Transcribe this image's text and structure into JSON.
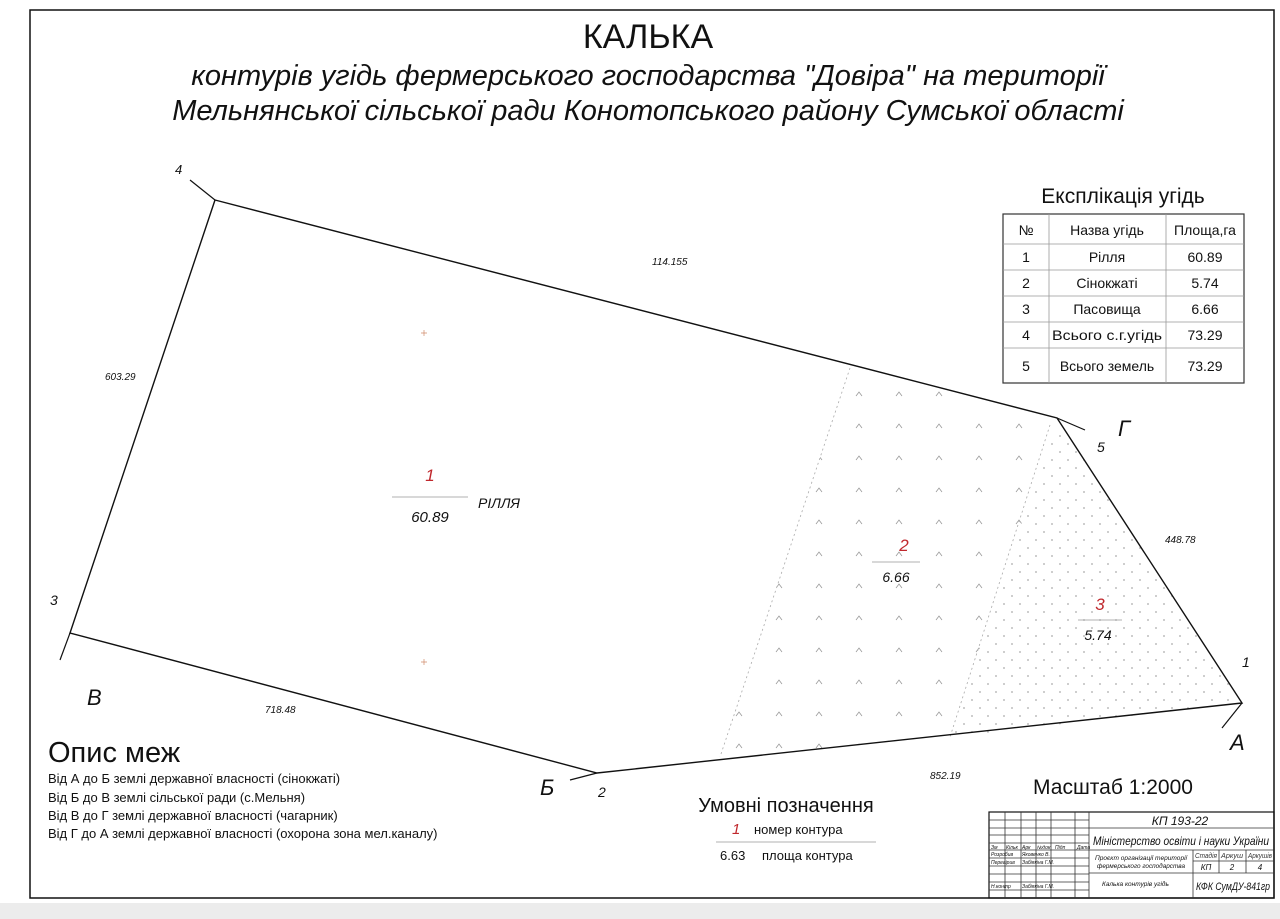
{
  "title": {
    "main": "КАЛЬКА",
    "line1": "контурів угідь фермерського господарства \"Довіра\" на території",
    "line2": "Мельнянської сільської ради Конотопського району Сумської  області"
  },
  "points": {
    "p1": "1",
    "p2": "2",
    "p3": "3",
    "p4": "4",
    "p5": "5",
    "A": "А",
    "B": "Б",
    "V": "В",
    "G": "Г"
  },
  "dimensions": {
    "top": "114.155",
    "left": "603.29",
    "right": "448.78",
    "bottom_left": "718.48",
    "bottom_right": "852.19"
  },
  "contours": [
    {
      "number": "1",
      "area": "60.89",
      "name": "РІЛЛЯ"
    },
    {
      "number": "2",
      "area": "6.66"
    },
    {
      "number": "3",
      "area": "5.74"
    }
  ],
  "explication": {
    "title": "Експлікація угідь",
    "headers": [
      "№",
      "Назва угідь",
      "Площа,га"
    ],
    "rows": [
      [
        "1",
        "Рілля",
        "60.89"
      ],
      [
        "2",
        "Сінокжаті",
        "5.74"
      ],
      [
        "3",
        "Пасовища",
        "6.66"
      ],
      [
        "4",
        "Всього с.г.угідь",
        "73.29"
      ],
      [
        "5",
        "Всього земель",
        "73.29"
      ]
    ]
  },
  "boundaries": {
    "title": "Опис меж",
    "lines": [
      "Від А до Б землі державної власності (сінокжаті)",
      "Від Б до В землі сільської ради (с.Мельня)",
      "Від В до Г землі державної власності (чагарник)",
      "Від Г до А землі державної власності (охорона зона мел.каналу)"
    ]
  },
  "legend": {
    "title": "Умовні позначення",
    "number_sample": "1",
    "number_label": "номер контура",
    "area_sample": "6.63",
    "area_label": "площа контура"
  },
  "scale": "Масштаб 1:2000",
  "title_block": {
    "code": "КП 193-22",
    "ministry": "Міністерство освіти і науки України",
    "project": "Проєкт організації території",
    "project2": "фермерського господарства",
    "sheet_name": "Калька контурів угідь",
    "org": "КФК СумДУ-841гр",
    "col_headers": [
      "Зм",
      "Кільк",
      "Арк",
      "№док",
      "Підп",
      "Дата"
    ],
    "roles": [
      "Розробив",
      "Перевірив",
      "Н.контр"
    ],
    "names": [
      "Яковенко В.",
      "Забіякіна Г.М.",
      "Забіякіна Г.М."
    ],
    "stage_headers": [
      "Стадія",
      "Аркуш",
      "Аркушів"
    ],
    "stage_values": [
      "КП",
      "2",
      "4"
    ]
  },
  "colors": {
    "line": "#111111",
    "contour_number": "#c0282d",
    "hatch": "#999999"
  }
}
